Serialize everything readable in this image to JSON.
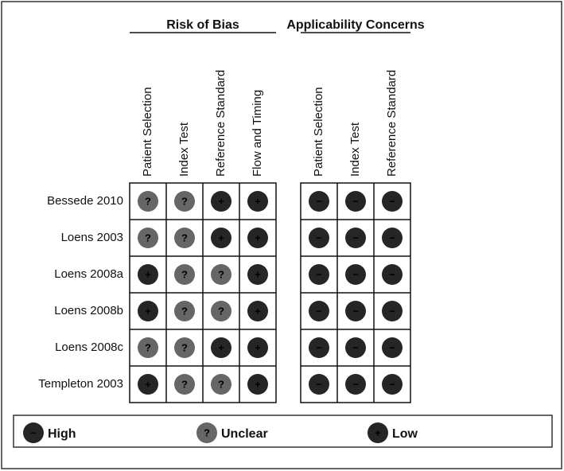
{
  "groups": [
    {
      "title": "Risk of Bias",
      "columns": [
        "Patient Selection",
        "Index Test",
        "Reference Standard",
        "Flow and Timing"
      ]
    },
    {
      "title": "Applicability Concerns",
      "columns": [
        "Patient Selection",
        "Index Test",
        "Reference Standard"
      ]
    }
  ],
  "rows": [
    {
      "study": "Bessede 2010",
      "cells": [
        [
          "?",
          "?",
          "+",
          "+"
        ],
        [
          "−",
          "−",
          "−"
        ]
      ]
    },
    {
      "study": "Loens 2003",
      "cells": [
        [
          "?",
          "?",
          "+",
          "+"
        ],
        [
          "−",
          "−",
          "−"
        ]
      ]
    },
    {
      "study": "Loens 2008a",
      "cells": [
        [
          "+",
          "?",
          "?",
          "+"
        ],
        [
          "−",
          "−",
          "−"
        ]
      ]
    },
    {
      "study": "Loens 2008b",
      "cells": [
        [
          "+",
          "?",
          "?",
          "+"
        ],
        [
          "−",
          "−",
          "−"
        ]
      ]
    },
    {
      "study": "Loens 2008c",
      "cells": [
        [
          "?",
          "?",
          "+",
          "+"
        ],
        [
          "−",
          "−",
          "−"
        ]
      ]
    },
    {
      "study": "Templeton 2003",
      "cells": [
        [
          "+",
          "?",
          "?",
          "+"
        ],
        [
          "−",
          "−",
          "−"
        ]
      ]
    }
  ],
  "legend": [
    {
      "symbol": "−",
      "label": "High",
      "color": "#262626"
    },
    {
      "symbol": "?",
      "label": "Unclear",
      "color": "#666666"
    },
    {
      "symbol": "+",
      "label": "Low",
      "color": "#262626"
    }
  ]
}
